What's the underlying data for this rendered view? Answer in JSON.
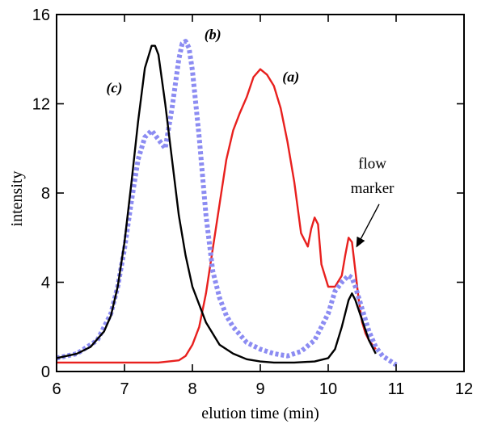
{
  "chart_data": {
    "type": "line",
    "title": "",
    "xlabel": "elution time (min)",
    "ylabel": "intensity",
    "xlim": [
      6,
      12
    ],
    "ylim": [
      0,
      16
    ],
    "xticks": [
      6,
      7,
      8,
      9,
      10,
      11,
      12
    ],
    "yticks": [
      0,
      4,
      8,
      12,
      16
    ],
    "grid": false,
    "series": [
      {
        "name": "(a)",
        "color": "#e8201e",
        "style": "solid",
        "label_at": [
          9.45,
          13.0
        ],
        "x": [
          6.0,
          6.5,
          7.0,
          7.5,
          7.8,
          7.9,
          8.0,
          8.1,
          8.2,
          8.3,
          8.4,
          8.5,
          8.6,
          8.7,
          8.8,
          8.9,
          9.0,
          9.1,
          9.2,
          9.3,
          9.4,
          9.5,
          9.6,
          9.7,
          9.75,
          9.8,
          9.85,
          9.9,
          10.0,
          10.1,
          10.2,
          10.25,
          10.3,
          10.35,
          10.4,
          10.45,
          10.5,
          10.55,
          10.6,
          10.65,
          10.7
        ],
        "y": [
          0.4,
          0.4,
          0.4,
          0.4,
          0.5,
          0.7,
          1.2,
          2.0,
          3.5,
          5.5,
          7.5,
          9.5,
          10.8,
          11.6,
          12.3,
          13.2,
          13.55,
          13.3,
          12.8,
          11.8,
          10.3,
          8.5,
          6.2,
          5.6,
          6.4,
          6.9,
          6.6,
          4.8,
          3.8,
          3.8,
          4.3,
          5.2,
          6.0,
          5.8,
          4.5,
          3.2,
          2.2,
          1.7,
          1.4,
          1.2,
          1.0
        ]
      },
      {
        "name": "(b)",
        "color": "#8c8cf2",
        "style": "dotted",
        "label_at": [
          8.3,
          14.9
        ],
        "x": [
          6.0,
          6.3,
          6.6,
          6.8,
          6.9,
          7.0,
          7.1,
          7.2,
          7.3,
          7.4,
          7.5,
          7.6,
          7.7,
          7.8,
          7.85,
          7.9,
          7.95,
          8.0,
          8.1,
          8.2,
          8.3,
          8.4,
          8.5,
          8.6,
          8.8,
          9.0,
          9.2,
          9.4,
          9.6,
          9.8,
          10.0,
          10.1,
          10.2,
          10.3,
          10.35,
          10.4,
          10.5,
          10.6,
          10.7,
          10.8,
          10.9,
          11.0
        ],
        "y": [
          0.6,
          0.8,
          1.4,
          2.6,
          3.8,
          5.5,
          7.6,
          9.5,
          10.5,
          10.8,
          10.4,
          10.0,
          11.8,
          14.0,
          14.7,
          14.8,
          14.5,
          13.5,
          10.5,
          7.0,
          4.5,
          3.3,
          2.5,
          2.0,
          1.3,
          1.0,
          0.8,
          0.7,
          0.9,
          1.4,
          2.6,
          3.6,
          4.0,
          4.3,
          4.2,
          3.8,
          2.8,
          1.8,
          1.1,
          0.7,
          0.5,
          0.3
        ]
      },
      {
        "name": "(c)",
        "color": "#000000",
        "style": "solid",
        "label_at": [
          6.85,
          12.5
        ],
        "x": [
          6.0,
          6.3,
          6.5,
          6.7,
          6.8,
          6.9,
          7.0,
          7.1,
          7.2,
          7.3,
          7.4,
          7.45,
          7.5,
          7.6,
          7.7,
          7.8,
          7.9,
          8.0,
          8.2,
          8.4,
          8.6,
          8.8,
          9.0,
          9.2,
          9.5,
          9.8,
          10.0,
          10.1,
          10.2,
          10.3,
          10.35,
          10.4,
          10.5,
          10.6,
          10.7
        ],
        "y": [
          0.6,
          0.8,
          1.1,
          1.8,
          2.5,
          3.8,
          5.8,
          8.4,
          11.2,
          13.6,
          14.6,
          14.6,
          14.2,
          12.0,
          9.5,
          7.0,
          5.2,
          3.8,
          2.2,
          1.2,
          0.8,
          0.55,
          0.45,
          0.4,
          0.4,
          0.45,
          0.6,
          1.0,
          2.0,
          3.2,
          3.5,
          3.2,
          2.3,
          1.4,
          0.8
        ]
      }
    ],
    "annotations": [
      {
        "text": "flow",
        "at": [
          10.65,
          9.1
        ]
      },
      {
        "text": "marker",
        "at": [
          10.65,
          8.0
        ]
      }
    ],
    "arrow": {
      "from": [
        10.75,
        7.5
      ],
      "to": [
        10.42,
        5.6
      ]
    }
  }
}
